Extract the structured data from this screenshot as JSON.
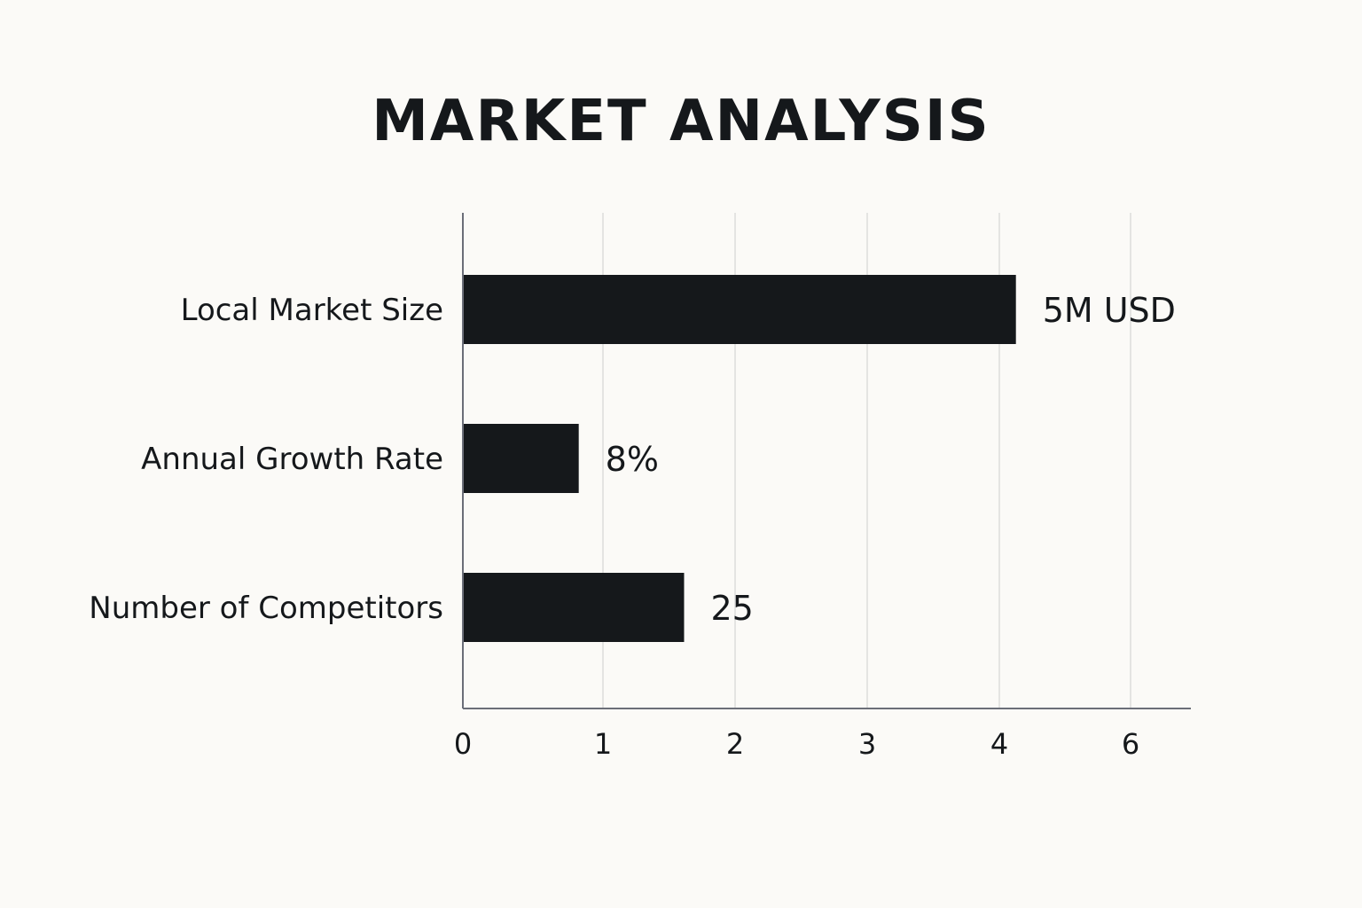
{
  "chart_data": {
    "type": "bar",
    "orientation": "horizontal",
    "title": "MARKET ANALYSIS",
    "xlabel": "",
    "ylabel": "",
    "categories": [
      "Local Market Size",
      "Annual Growth Rate",
      "Number of Competitors"
    ],
    "values": [
      4.2,
      0.88,
      1.68
    ],
    "data_labels": [
      "5M USD",
      "8%",
      "25"
    ],
    "x_ticks": [
      0,
      1,
      2,
      3,
      4,
      6
    ],
    "xlim": [
      0,
      5.5
    ],
    "grid": "vertical",
    "legend": "none",
    "bar_color": "#15181b",
    "grid_color": "#dcdcdc",
    "axis_color": "#6b6e78"
  }
}
